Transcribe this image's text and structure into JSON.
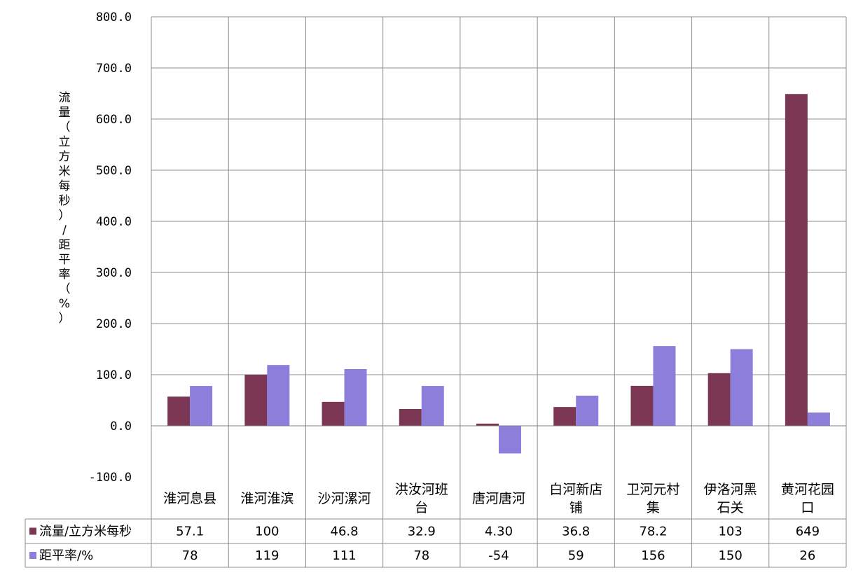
{
  "chart_data": {
    "type": "bar",
    "ylabel": "流量（立方米每秒）/距平率（%）",
    "ylim": [
      -100,
      800
    ],
    "y_ticks": [
      "-100.0",
      "0.0",
      "100.0",
      "200.0",
      "300.0",
      "400.0",
      "500.0",
      "600.0",
      "700.0",
      "800.0"
    ],
    "grid": true,
    "categories": [
      [
        "淮河息县"
      ],
      [
        "淮河淮滨"
      ],
      [
        "沙河漯河"
      ],
      [
        "洪汝河班",
        "台"
      ],
      [
        "唐河唐河"
      ],
      [
        "白河新店",
        "铺"
      ],
      [
        "卫河元村",
        "集"
      ],
      [
        "伊洛河黑",
        "石关"
      ],
      [
        "黄河花园",
        "口"
      ]
    ],
    "series": [
      {
        "name": "流量/立方米每秒",
        "color": "#7B3654",
        "values": [
          57.1,
          100,
          46.8,
          32.9,
          4.3,
          36.8,
          78.2,
          103,
          649
        ],
        "labels": [
          "57.1",
          "100",
          "46.8",
          "32.9",
          "4.30",
          "36.8",
          "78.2",
          "103",
          "649"
        ]
      },
      {
        "name": "距平率/%",
        "color": "#8D7EDC",
        "values": [
          78,
          119,
          111,
          78,
          -54,
          59,
          156,
          150,
          26
        ],
        "labels": [
          "78",
          "119",
          "111",
          "78",
          "-54",
          "59",
          "156",
          "150",
          "26"
        ]
      }
    ]
  }
}
